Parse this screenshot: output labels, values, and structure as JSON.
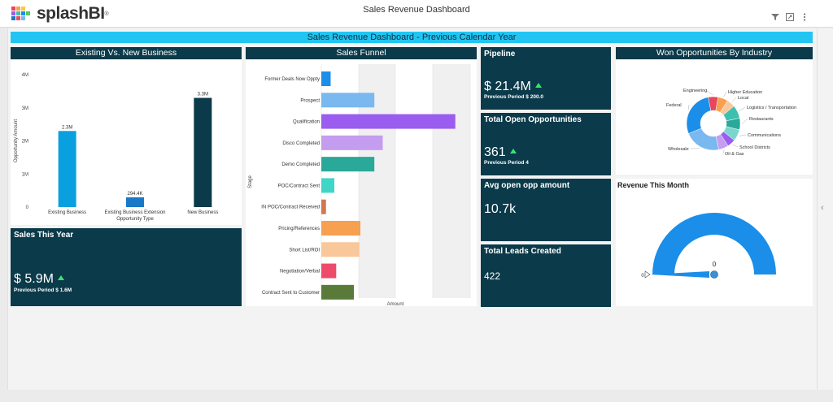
{
  "app": {
    "brand": "splashBI",
    "title": "Sales Revenue Dashboard"
  },
  "toolbar": {
    "icons": [
      "filter-icon",
      "expand-icon",
      "more-icon"
    ]
  },
  "banner": "Sales Revenue Dashboard - Previous Calendar Year",
  "colors": {
    "header": "#0b3a4a",
    "banner": "#22c5f2"
  },
  "panels": {
    "existing_vs_new": "Existing Vs. New Business",
    "sales_funnel": "Sales Funnel",
    "won_by_industry": "Won Opportunities By Industry",
    "revenue_this_month": "Revenue This Month"
  },
  "kpis": {
    "pipeline": {
      "title": "Pipeline",
      "value": "$ 21.4M",
      "sub": "Previous Period $ 200.0"
    },
    "open_opps": {
      "title": "Total Open Opportunities",
      "value": "361",
      "sub": "Previous Period 4"
    },
    "avg_open": {
      "title": "Avg open opp amount",
      "value": "10.7k"
    },
    "leads": {
      "title": "Total Leads Created",
      "value": "422"
    },
    "sales_year": {
      "title": "Sales This Year",
      "value": "$ 5.9M",
      "sub": "Previous Period $ 1.6M"
    }
  },
  "chart_data": [
    {
      "type": "bar",
      "xlabel": "Opportunity Type",
      "ylabel": "Opportunity Amount",
      "categories": [
        "Existing Business",
        "Existing Business Extension",
        "New Business"
      ],
      "values": [
        2300000,
        294400,
        3300000
      ],
      "data_labels": [
        "2.3M",
        "294.4K",
        "3.3M"
      ],
      "colors": [
        "#0aa0e0",
        "#1a78c8",
        "#0b3a4a"
      ],
      "ylim": [
        0,
        4000000
      ],
      "yticks": [
        0,
        1000000,
        2000000,
        3000000,
        4000000
      ],
      "ytick_labels": [
        "0",
        "1M",
        "2M",
        "3M",
        "4M"
      ]
    },
    {
      "type": "bar",
      "orientation": "horizontal",
      "xlabel": "Amount",
      "ylabel": "Stage",
      "categories": [
        "Former Deals Now Oppty",
        "Prospect",
        "Qualification",
        "Disco Completed",
        "Demo Completed",
        "POC/Contract Sent",
        "IN POC/Contract Received",
        "Pricing/References",
        "Short List/ROI",
        "Negotiation/Verbal",
        "Contract Sent to Customer"
      ],
      "values": [
        10,
        57,
        144,
        66,
        57,
        14,
        5,
        42,
        41,
        16,
        35
      ],
      "colors": [
        "#1a8ee8",
        "#7ab8f0",
        "#9b5cf0",
        "#c49cf0",
        "#2aa89a",
        "#3fd6c8",
        "#d07850",
        "#f6a050",
        "#f8c89a",
        "#ee4a6a",
        "#5a7a3a"
      ]
    },
    {
      "type": "pie",
      "categories": [
        "Engineering",
        "Higher Education",
        "Local",
        "Logistics / Transportation",
        "Restaurants",
        "Communications",
        "School Districts",
        "Oil & Gas",
        "Wholesale",
        "Federal"
      ],
      "values": [
        6,
        6,
        5,
        8,
        7,
        7,
        5,
        6,
        22,
        28
      ],
      "colors": [
        "#e8465c",
        "#f6a050",
        "#f8c89a",
        "#3fbfb0",
        "#2aa89a",
        "#7ad6cc",
        "#9b5cf0",
        "#c49cf0",
        "#7ab8f0",
        "#1a8ee8"
      ]
    },
    {
      "type": "gauge",
      "value": 0,
      "value_label": "0",
      "min_label": "0",
      "color": "#1a8ee8"
    }
  ]
}
